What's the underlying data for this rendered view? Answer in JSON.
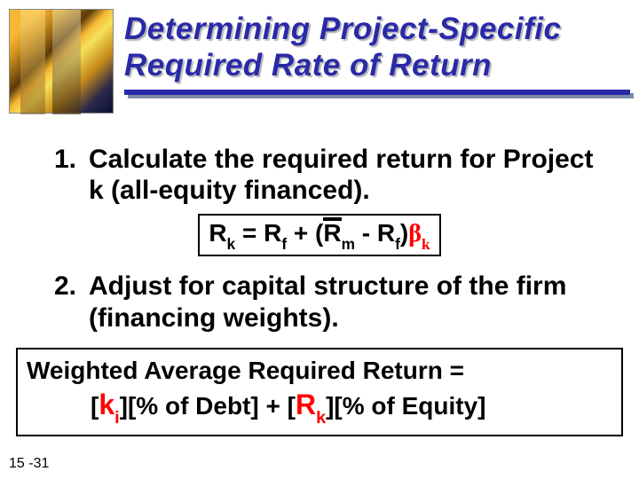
{
  "title_line1": "Determining Project-Specific",
  "title_line2": "Required Rate of Return",
  "item1_num": "1.",
  "item1_text": "Calculate the required return for Project k (all-equity financed).",
  "formula": {
    "Rk": "R",
    "sub_k1": "k",
    "eq": " = R",
    "sub_f1": "f",
    "plus": " + (",
    "Rm": "R",
    "sub_m": "m",
    "minus": " - R",
    "sub_f2": "f",
    "close": ")",
    "beta": "β",
    "sub_k2": "k"
  },
  "item2_num": "2.",
  "item2_text": "Adjust for capital structure of the firm (financing weights).",
  "warr": {
    "line1": "Weighted Average Required Return =",
    "open1": "[",
    "ki": "k",
    "sub_i": "i",
    "mid1": "][% of Debt] + [",
    "Rk2": "R",
    "sub_k3": "k",
    "end": "][% of Equity]"
  },
  "slide_num": "15 -31",
  "colors": {
    "title_blue": "#2a2aa8",
    "accent_red": "#ff0000",
    "rule_shadow": "#7a8aa8",
    "background": "#ffffff"
  }
}
